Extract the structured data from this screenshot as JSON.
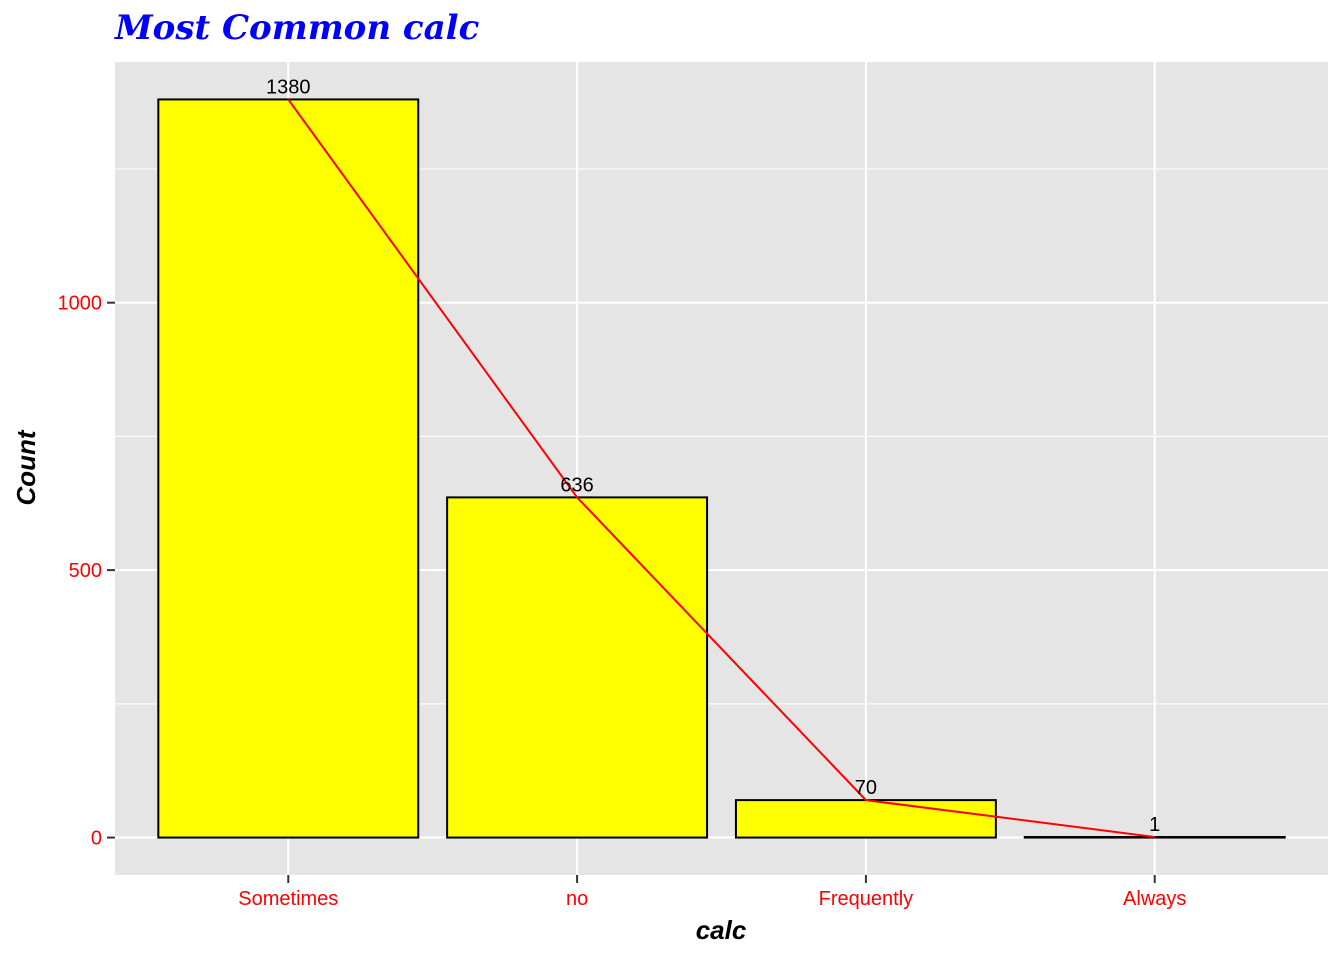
{
  "chart_data": {
    "type": "bar",
    "title": "Most Common calc",
    "xlabel": "calc",
    "ylabel": "Count",
    "categories": [
      "Sometimes",
      "no",
      "Frequently",
      "Always"
    ],
    "values": [
      1380,
      636,
      70,
      1
    ],
    "data_labels": [
      "1380",
      "636",
      "70",
      "1"
    ],
    "ylim": [
      -70,
      1450
    ],
    "y_ticks": [
      0,
      500,
      1000
    ],
    "y_tick_labels": [
      "0",
      "500",
      "1000"
    ],
    "overlay_line": true,
    "grid": true,
    "colors": {
      "bar_fill": "#ffff00",
      "bar_stroke": "#000000",
      "line": "#ff0000",
      "panel": "#e5e5e5",
      "grid": "#ffffff",
      "title": "#0000ff",
      "tick_labels": "#ff0000"
    }
  }
}
